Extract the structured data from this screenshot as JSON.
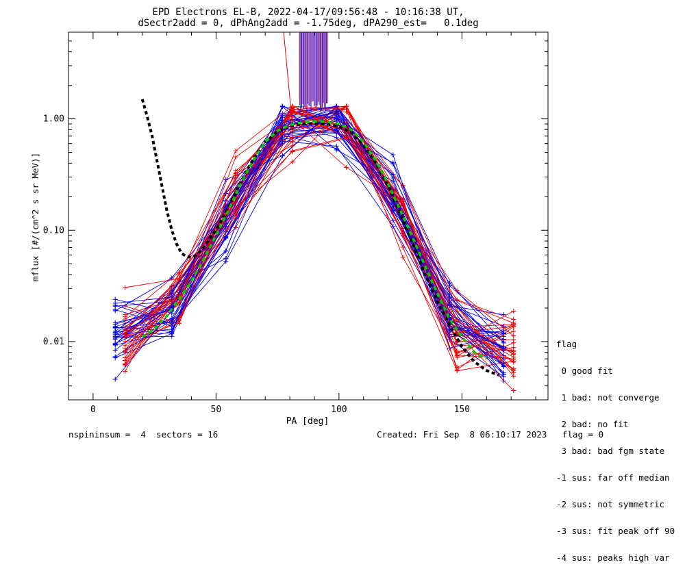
{
  "chart_data": {
    "type": "line",
    "title": "EPD Electrons EL-B, 2022-04-17/09:56:48 - 10:16:38 UT,",
    "subtitle": "dSectr2add = 0, dPhAng2add = -1.75deg, dPA290_est=   0.1deg",
    "xlabel": "PA [deg]",
    "ylabel": "mflux [#/(cm^2 s sr MeV)]",
    "xlim": [
      -10,
      185
    ],
    "ylim": [
      0.003,
      6.0
    ],
    "yscale": "log",
    "x_ticks": [
      0,
      50,
      100,
      150
    ],
    "x_tick_labels": [
      "0",
      "50",
      "100",
      "150"
    ],
    "y_ticks": [
      0.01,
      0.1,
      1.0
    ],
    "y_tick_labels": [
      "0.01",
      "0.10",
      "1.00"
    ],
    "pa_bins": [
      9,
      13,
      32,
      35,
      54,
      58,
      77,
      81,
      99,
      103,
      122,
      126,
      145,
      148,
      167,
      171
    ],
    "fit_curve": {
      "color": "#00cc00",
      "x": [
        20,
        25,
        30,
        35,
        40,
        45,
        50,
        55,
        60,
        65,
        70,
        75,
        80,
        85,
        90,
        95,
        100,
        105,
        110,
        115,
        120,
        125,
        130,
        135,
        140,
        145,
        150,
        155,
        160
      ],
      "y": [
        0.011,
        0.013,
        0.017,
        0.024,
        0.035,
        0.055,
        0.09,
        0.15,
        0.26,
        0.42,
        0.62,
        0.78,
        0.88,
        0.93,
        0.95,
        0.94,
        0.9,
        0.8,
        0.62,
        0.42,
        0.26,
        0.15,
        0.085,
        0.048,
        0.027,
        0.016,
        0.011,
        0.008,
        0.007
      ]
    },
    "model_curve": {
      "color": "#000000",
      "x": [
        20,
        22,
        24,
        26,
        28,
        30,
        32,
        34,
        36,
        38,
        40,
        42,
        44,
        46,
        48,
        50,
        55,
        60,
        65,
        70,
        75,
        80,
        85,
        90,
        95,
        100,
        105,
        110,
        115,
        120,
        125,
        130,
        135,
        140,
        145,
        150,
        155,
        160,
        165
      ],
      "y": [
        1.5,
        1.05,
        0.7,
        0.42,
        0.25,
        0.15,
        0.1,
        0.075,
        0.062,
        0.058,
        0.057,
        0.06,
        0.066,
        0.075,
        0.088,
        0.1,
        0.16,
        0.27,
        0.43,
        0.62,
        0.77,
        0.86,
        0.9,
        0.91,
        0.9,
        0.85,
        0.75,
        0.58,
        0.4,
        0.25,
        0.14,
        0.075,
        0.04,
        0.023,
        0.014,
        0.009,
        0.0066,
        0.0055,
        0.005
      ]
    },
    "series_colors": {
      "red": "#ee0000",
      "blue": "#0000ee"
    }
  },
  "legend": {
    "title": "flag",
    "items": [
      " 0 good fit",
      " 1 bad: not converge",
      " 2 bad: no fit",
      " 3 bad: bad fgm state",
      "-1 sus: far off median",
      "-2 sus: not symmetric",
      "-3 sus: fit peak off 90",
      "-4 sus: peaks high var"
    ]
  },
  "footer": {
    "left": "nspininsum =  4  sectors = 16",
    "right": "Created: Fri Sep  8 06:10:17 2023   flag = 0"
  }
}
